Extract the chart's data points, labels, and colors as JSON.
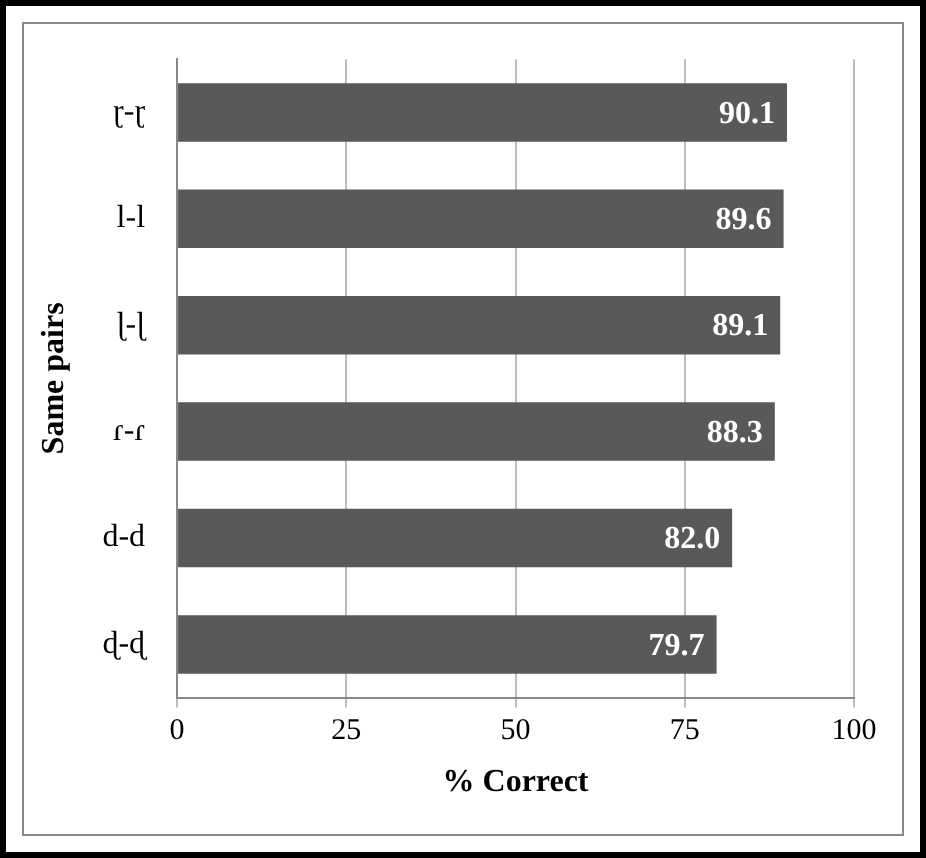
{
  "chart_data": {
    "type": "bar",
    "orientation": "horizontal",
    "ylabel": "Same pairs",
    "xlabel": "% Correct",
    "categories": [
      "ɽ-ɽ",
      "l-l",
      "ɭ-ɭ",
      "ɾ-ɾ",
      "d-d",
      "ɖ-ɖ"
    ],
    "values": [
      90.1,
      89.6,
      89.1,
      88.3,
      82.0,
      79.7
    ],
    "value_labels": [
      "90.1",
      "89.6",
      "89.1",
      "88.3",
      "82.0",
      "79.7"
    ],
    "color": "#595959",
    "xlim": [
      0,
      100
    ],
    "xticks": [
      0,
      25,
      50,
      75,
      100
    ],
    "grid": "x",
    "legend": false
  }
}
